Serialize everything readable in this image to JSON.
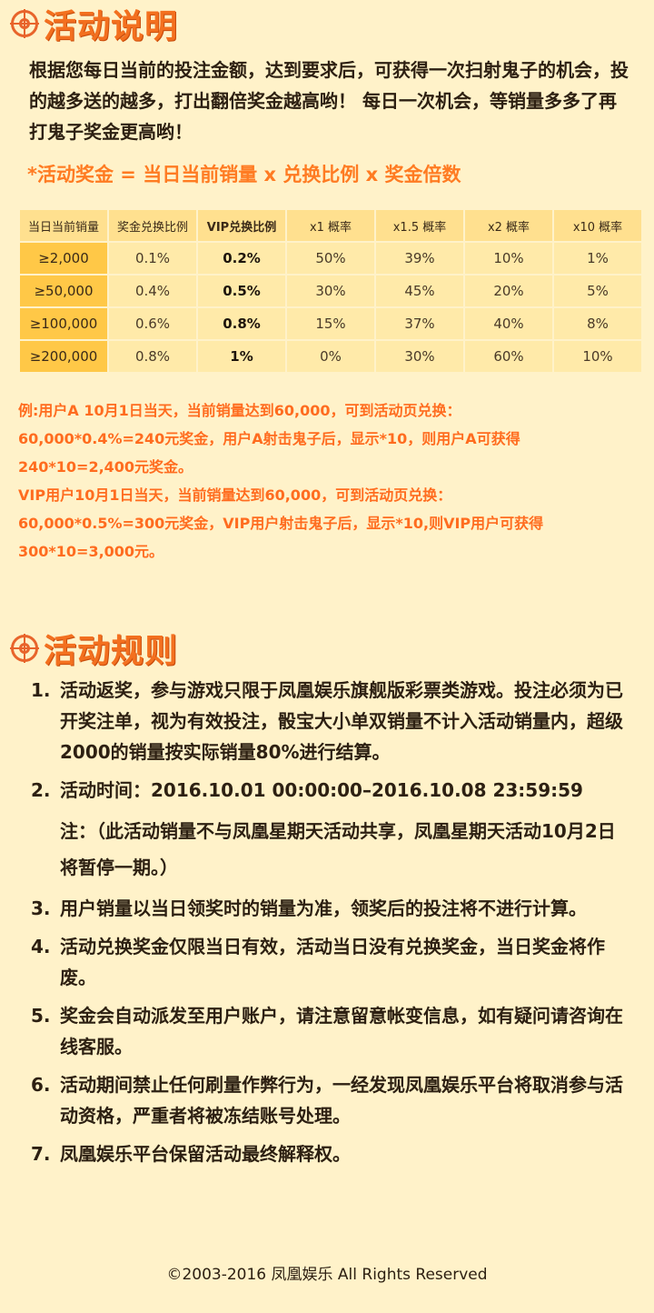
{
  "section1": {
    "title": "活动说明",
    "intro": "根据您每日当前的投注金额，达到要求后，可获得一次扫射鬼子的机会，投的越多送的越多，打出翻倍奖金越高哟！ 每日一次机会，等销量多多了再打鬼子奖金更高哟！",
    "formula": "*活动奖金 = 当日当前销量 x 兑换比例 x 奖金倍数"
  },
  "table": {
    "headers": [
      "当日当前销量",
      "奖金兑换比例",
      "VIP兑换比例",
      "x1 概率",
      "x1.5 概率",
      "x2 概率",
      "x10 概率"
    ],
    "rows": [
      [
        "≥2,000",
        "0.1%",
        "0.2%",
        "50%",
        "39%",
        "10%",
        "1%"
      ],
      [
        "≥50,000",
        "0.4%",
        "0.5%",
        "30%",
        "45%",
        "20%",
        "5%"
      ],
      [
        "≥100,000",
        "0.6%",
        "0.8%",
        "15%",
        "37%",
        "40%",
        "8%"
      ],
      [
        "≥200,000",
        "0.8%",
        "1%",
        "0%",
        "30%",
        "60%",
        "10%"
      ]
    ]
  },
  "example": {
    "line1": "例:用户A 10月1日当天，当前销量达到60,000，可到活动页兑换：",
    "line2": "60,000*0.4%=240元奖金，用户A射击鬼子后，显示*10，则用户A可获得",
    "line3": "240*10=2,400元奖金。",
    "line4": " VIP用户10月1日当天，当前销量达到60,000，可到活动页兑换：",
    "line5": "60,000*0.5%=300元奖金，VIP用户射击鬼子后，显示*10,则VIP用户可获得",
    "line6": "300*10=3,000元。"
  },
  "section2": {
    "title": "活动规则",
    "rules": [
      {
        "num": "1.",
        "text": "活动返奖，参与游戏只限于凤凰娱乐旗舰版彩票类游戏。投注必须为已开奖注单，视为有效投注，骰宝大小单双销量不计入活动销量内，超级2000的销量按实际销量80%进行结算。"
      },
      {
        "num": "2.",
        "text": "活动时间：2016.10.01 00:00:00–2016.10.08 23:59:59",
        "note": "注：（此活动销量不与凤凰星期天活动共享，凤凰星期天活动10月2日将暂停一期。）"
      },
      {
        "num": "3.",
        "text": "用户销量以当日领奖时的销量为准，领奖后的投注将不进行计算。"
      },
      {
        "num": "4.",
        "text": "活动兑换奖金仅限当日有效，活动当日没有兑换奖金，当日奖金将作废。"
      },
      {
        "num": "5.",
        "text": "奖金会自动派发至用户账户，请注意留意帐变信息，如有疑问请咨询在线客服。"
      },
      {
        "num": "6.",
        "text": "活动期间禁止任何刷量作弊行为，一经发现凤凰娱乐平台将取消参与活动资格，严重者将被冻结账号处理。"
      },
      {
        "num": "7.",
        "text": "凤凰娱乐平台保留活动最终解释权。"
      }
    ]
  },
  "footer": "©2003-2016 凤凰娱乐 All Rights Reserved",
  "colors": {
    "accent": "#f3701f",
    "background": "#fff2c9",
    "cell": "#ffeaa9",
    "first_col": "#ffc847"
  }
}
